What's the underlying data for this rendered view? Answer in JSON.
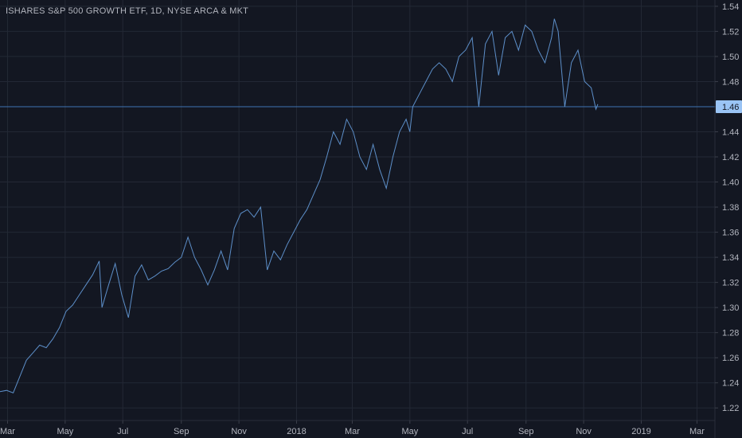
{
  "title": "ISHARES S&P 500 GROWTH ETF, 1D, NYSE ARCA & MKT",
  "colors": {
    "background": "#131722",
    "grid": "#232835",
    "line": "#5d8fc9",
    "price_line": "#3f73b3",
    "price_tag": "#9ac4f5",
    "axis_text": "#b2b5be"
  },
  "chart_data": {
    "type": "line",
    "title": "ISHARES S&P 500 GROWTH ETF, 1D, NYSE ARCA & MKT",
    "xlabel": "",
    "ylabel": "",
    "grid": true,
    "ylim": [
      1.21,
      1.545
    ],
    "y_ticks": [
      1.22,
      1.24,
      1.26,
      1.28,
      1.3,
      1.32,
      1.34,
      1.36,
      1.38,
      1.4,
      1.42,
      1.44,
      1.46,
      1.48,
      1.5,
      1.52,
      1.54
    ],
    "y_tick_labels": [
      "1.22",
      "1.24",
      "1.26",
      "1.28",
      "1.30",
      "1.32",
      "1.34",
      "1.36",
      "1.38",
      "1.40",
      "1.42",
      "1.44",
      "1.46",
      "1.48",
      "1.50",
      "1.52",
      "1.54"
    ],
    "xlim": [
      "2017-02-21",
      "2019-03-20"
    ],
    "x_ticks": [
      "2017-03-01",
      "2017-05-01",
      "2017-07-01",
      "2017-09-01",
      "2017-11-01",
      "2018-01-01",
      "2018-03-01",
      "2018-05-01",
      "2018-07-01",
      "2018-09-01",
      "2018-11-01",
      "2019-01-01",
      "2019-03-01"
    ],
    "x_tick_labels": [
      "Mar",
      "May",
      "Jul",
      "Sep",
      "Nov",
      "2018",
      "Mar",
      "May",
      "Jul",
      "Sep",
      "Nov",
      "2019",
      "Mar"
    ],
    "current_price": 1.46,
    "current_price_label": "1.46",
    "series": [
      {
        "x": [
          "2017-02-21",
          "2017-02-28",
          "2017-03-07",
          "2017-03-14",
          "2017-03-21",
          "2017-03-28",
          "2017-04-04",
          "2017-04-11",
          "2017-04-18",
          "2017-04-25",
          "2017-05-02",
          "2017-05-09",
          "2017-05-16",
          "2017-05-23",
          "2017-05-30",
          "2017-06-06",
          "2017-06-09",
          "2017-06-16",
          "2017-06-23",
          "2017-06-30",
          "2017-07-07",
          "2017-07-14",
          "2017-07-21",
          "2017-07-28",
          "2017-08-04",
          "2017-08-11",
          "2017-08-18",
          "2017-08-25",
          "2017-09-01",
          "2017-09-08",
          "2017-09-15",
          "2017-09-22",
          "2017-09-29",
          "2017-10-06",
          "2017-10-13",
          "2017-10-20",
          "2017-10-27",
          "2017-11-03",
          "2017-11-10",
          "2017-11-17",
          "2017-11-24",
          "2017-12-01",
          "2017-12-08",
          "2017-12-15",
          "2017-12-22",
          "2017-12-29",
          "2018-01-05",
          "2018-01-12",
          "2018-01-19",
          "2018-01-26",
          "2018-02-02",
          "2018-02-09",
          "2018-02-16",
          "2018-02-23",
          "2018-03-02",
          "2018-03-09",
          "2018-03-16",
          "2018-03-23",
          "2018-03-30",
          "2018-04-06",
          "2018-04-13",
          "2018-04-20",
          "2018-04-27",
          "2018-05-01",
          "2018-05-04",
          "2018-05-11",
          "2018-05-18",
          "2018-05-25",
          "2018-06-01",
          "2018-06-08",
          "2018-06-15",
          "2018-06-22",
          "2018-06-29",
          "2018-07-06",
          "2018-07-13",
          "2018-07-20",
          "2018-07-27",
          "2018-08-03",
          "2018-08-10",
          "2018-08-17",
          "2018-08-24",
          "2018-08-31",
          "2018-09-07",
          "2018-09-14",
          "2018-09-21",
          "2018-09-28",
          "2018-10-01",
          "2018-10-05",
          "2018-10-12",
          "2018-10-19",
          "2018-10-26",
          "2018-11-02",
          "2018-11-09",
          "2018-11-14",
          "2018-11-16"
        ],
        "values": [
          1.233,
          1.234,
          1.232,
          1.245,
          1.258,
          1.264,
          1.27,
          1.268,
          1.275,
          1.284,
          1.297,
          1.302,
          1.31,
          1.318,
          1.326,
          1.337,
          1.3,
          1.318,
          1.335,
          1.31,
          1.292,
          1.325,
          1.334,
          1.322,
          1.325,
          1.329,
          1.331,
          1.336,
          1.34,
          1.356,
          1.34,
          1.33,
          1.318,
          1.33,
          1.345,
          1.33,
          1.363,
          1.375,
          1.378,
          1.372,
          1.38,
          1.33,
          1.345,
          1.338,
          1.35,
          1.36,
          1.37,
          1.378,
          1.39,
          1.402,
          1.42,
          1.44,
          1.43,
          1.45,
          1.44,
          1.42,
          1.41,
          1.43,
          1.41,
          1.395,
          1.42,
          1.44,
          1.45,
          1.44,
          1.46,
          1.47,
          1.48,
          1.49,
          1.495,
          1.49,
          1.48,
          1.5,
          1.505,
          1.515,
          1.46,
          1.51,
          1.52,
          1.485,
          1.515,
          1.52,
          1.505,
          1.525,
          1.52,
          1.505,
          1.495,
          1.515,
          1.53,
          1.52,
          1.46,
          1.495,
          1.505,
          1.48,
          1.475,
          1.458,
          1.462
        ]
      }
    ]
  }
}
